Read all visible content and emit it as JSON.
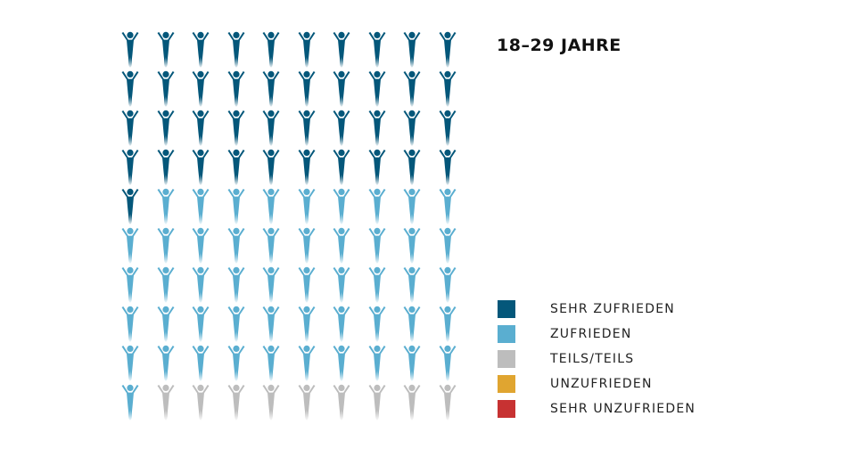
{
  "chart_data": {
    "type": "pictogram",
    "title": "18–29 JAHRE",
    "unit_total": 100,
    "categories": [
      "SEHR ZUFRIEDEN",
      "ZUFRIEDEN",
      "TEILS/TEILS",
      "UNZUFRIEDEN",
      "SEHR UNZUFRIEDEN"
    ],
    "values": [
      41,
      50,
      9,
      0,
      0
    ],
    "colors": [
      "#04577a",
      "#5aaed0",
      "#bdbdbd",
      "#e0a530",
      "#c73232"
    ],
    "legend_position": "bottom-right"
  }
}
